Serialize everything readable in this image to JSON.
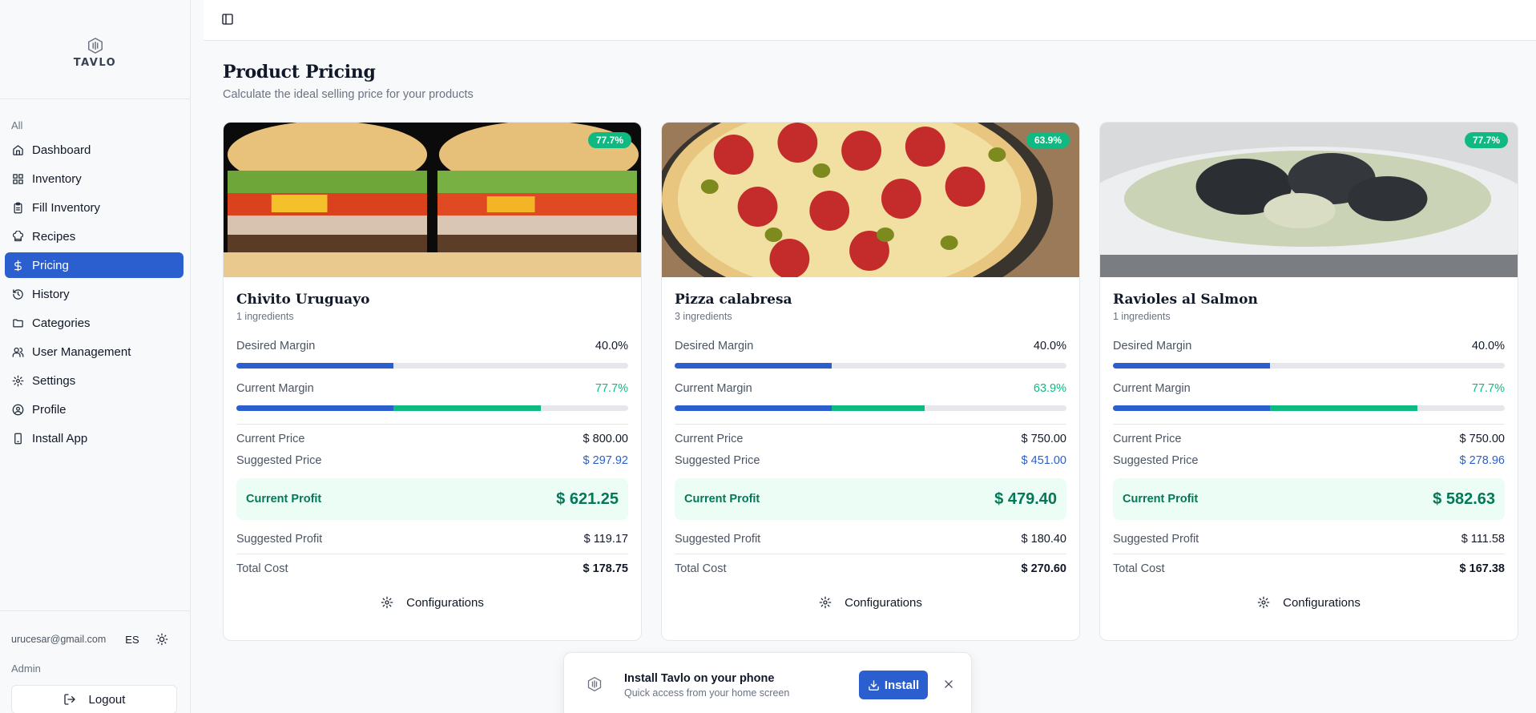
{
  "brand": {
    "name": "TAVLO"
  },
  "sidebar": {
    "section_label": "All",
    "items": [
      {
        "label": "Dashboard",
        "icon": "home-icon",
        "active": false
      },
      {
        "label": "Inventory",
        "icon": "grid-icon",
        "active": false
      },
      {
        "label": "Fill Inventory",
        "icon": "clipboard-icon",
        "active": false
      },
      {
        "label": "Recipes",
        "icon": "chef-hat-icon",
        "active": false
      },
      {
        "label": "Pricing",
        "icon": "dollar-icon",
        "active": true
      },
      {
        "label": "History",
        "icon": "history-icon",
        "active": false
      },
      {
        "label": "Categories",
        "icon": "folder-icon",
        "active": false
      },
      {
        "label": "User Management",
        "icon": "users-icon",
        "active": false
      },
      {
        "label": "Settings",
        "icon": "gear-icon",
        "active": false
      },
      {
        "label": "Profile",
        "icon": "user-circle-icon",
        "active": false
      },
      {
        "label": "Install App",
        "icon": "smartphone-icon",
        "active": false
      }
    ],
    "footer": {
      "email": "urucesar@gmail.com",
      "language": "ES",
      "role": "Admin",
      "logout_label": "Logout"
    }
  },
  "page": {
    "title": "Product Pricing",
    "subtitle": "Calculate the ideal selling price for your products"
  },
  "labels": {
    "desired_margin": "Desired Margin",
    "current_margin": "Current Margin",
    "current_price": "Current Price",
    "suggested_price": "Suggested Price",
    "current_profit": "Current Profit",
    "suggested_profit": "Suggested Profit",
    "total_cost": "Total Cost",
    "configurations": "Configurations"
  },
  "products": [
    {
      "name": "Chivito Uruguayo",
      "ingredients": "1 ingredients",
      "badge": "77.7%",
      "desired_margin": "40.0%",
      "desired_margin_value": 0.4,
      "current_margin": "77.7%",
      "current_margin_value": 0.777,
      "current_price": "$ 800.00",
      "suggested_price": "$ 297.92",
      "current_profit": "$ 621.25",
      "suggested_profit": "$ 119.17",
      "total_cost": "$ 178.75",
      "image": "sandwich"
    },
    {
      "name": "Pizza calabresa",
      "ingredients": "3 ingredients",
      "badge": "63.9%",
      "desired_margin": "40.0%",
      "desired_margin_value": 0.4,
      "current_margin": "63.9%",
      "current_margin_value": 0.639,
      "current_price": "$ 750.00",
      "suggested_price": "$ 451.00",
      "current_profit": "$ 479.40",
      "suggested_profit": "$ 180.40",
      "total_cost": "$ 270.60",
      "image": "pizza"
    },
    {
      "name": "Ravioles al Salmon",
      "ingredients": "1 ingredients",
      "badge": "77.7%",
      "desired_margin": "40.0%",
      "desired_margin_value": 0.4,
      "current_margin": "77.7%",
      "current_margin_value": 0.777,
      "current_price": "$ 750.00",
      "suggested_price": "$ 278.96",
      "current_profit": "$ 582.63",
      "suggested_profit": "$ 111.58",
      "total_cost": "$ 167.38",
      "image": "ravioli"
    }
  ],
  "install_toast": {
    "title": "Install Tavlo on your phone",
    "subtitle": "Quick access from your home screen",
    "button_label": "Install"
  },
  "colors": {
    "primary": "#2b5fcf",
    "success": "#10b981",
    "success_dark": "#047857",
    "success_bg": "#ecfdf5"
  }
}
